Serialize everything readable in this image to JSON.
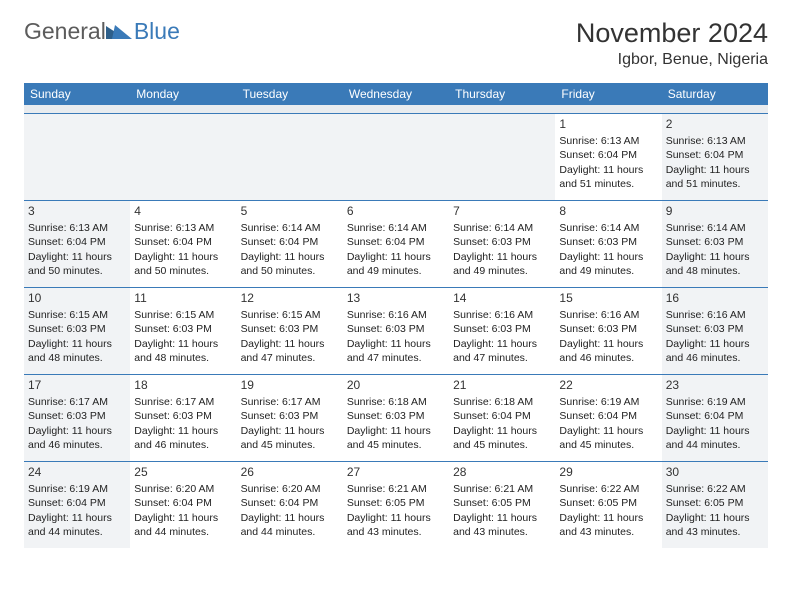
{
  "logo": {
    "general": "General",
    "blue": "Blue"
  },
  "title": "November 2024",
  "location": "Igbor, Benue, Nigeria",
  "colors": {
    "header_bg": "#3a7ab8",
    "shade_bg": "#f1f3f5",
    "rule": "#3a7ab8",
    "text": "#222222"
  },
  "day_headers": [
    "Sunday",
    "Monday",
    "Tuesday",
    "Wednesday",
    "Thursday",
    "Friday",
    "Saturday"
  ],
  "weeks": [
    [
      {
        "day": "",
        "sunrise": "",
        "sunset": "",
        "daylight1": "",
        "daylight2": "",
        "shade": true,
        "empty": true
      },
      {
        "day": "",
        "sunrise": "",
        "sunset": "",
        "daylight1": "",
        "daylight2": "",
        "shade": false,
        "empty": true
      },
      {
        "day": "",
        "sunrise": "",
        "sunset": "",
        "daylight1": "",
        "daylight2": "",
        "shade": false,
        "empty": true
      },
      {
        "day": "",
        "sunrise": "",
        "sunset": "",
        "daylight1": "",
        "daylight2": "",
        "shade": false,
        "empty": true
      },
      {
        "day": "",
        "sunrise": "",
        "sunset": "",
        "daylight1": "",
        "daylight2": "",
        "shade": false,
        "empty": true
      },
      {
        "day": "1",
        "sunrise": "Sunrise: 6:13 AM",
        "sunset": "Sunset: 6:04 PM",
        "daylight1": "Daylight: 11 hours",
        "daylight2": "and 51 minutes.",
        "shade": false,
        "empty": false
      },
      {
        "day": "2",
        "sunrise": "Sunrise: 6:13 AM",
        "sunset": "Sunset: 6:04 PM",
        "daylight1": "Daylight: 11 hours",
        "daylight2": "and 51 minutes.",
        "shade": true,
        "empty": false
      }
    ],
    [
      {
        "day": "3",
        "sunrise": "Sunrise: 6:13 AM",
        "sunset": "Sunset: 6:04 PM",
        "daylight1": "Daylight: 11 hours",
        "daylight2": "and 50 minutes.",
        "shade": true,
        "empty": false
      },
      {
        "day": "4",
        "sunrise": "Sunrise: 6:13 AM",
        "sunset": "Sunset: 6:04 PM",
        "daylight1": "Daylight: 11 hours",
        "daylight2": "and 50 minutes.",
        "shade": false,
        "empty": false
      },
      {
        "day": "5",
        "sunrise": "Sunrise: 6:14 AM",
        "sunset": "Sunset: 6:04 PM",
        "daylight1": "Daylight: 11 hours",
        "daylight2": "and 50 minutes.",
        "shade": false,
        "empty": false
      },
      {
        "day": "6",
        "sunrise": "Sunrise: 6:14 AM",
        "sunset": "Sunset: 6:04 PM",
        "daylight1": "Daylight: 11 hours",
        "daylight2": "and 49 minutes.",
        "shade": false,
        "empty": false
      },
      {
        "day": "7",
        "sunrise": "Sunrise: 6:14 AM",
        "sunset": "Sunset: 6:03 PM",
        "daylight1": "Daylight: 11 hours",
        "daylight2": "and 49 minutes.",
        "shade": false,
        "empty": false
      },
      {
        "day": "8",
        "sunrise": "Sunrise: 6:14 AM",
        "sunset": "Sunset: 6:03 PM",
        "daylight1": "Daylight: 11 hours",
        "daylight2": "and 49 minutes.",
        "shade": false,
        "empty": false
      },
      {
        "day": "9",
        "sunrise": "Sunrise: 6:14 AM",
        "sunset": "Sunset: 6:03 PM",
        "daylight1": "Daylight: 11 hours",
        "daylight2": "and 48 minutes.",
        "shade": true,
        "empty": false
      }
    ],
    [
      {
        "day": "10",
        "sunrise": "Sunrise: 6:15 AM",
        "sunset": "Sunset: 6:03 PM",
        "daylight1": "Daylight: 11 hours",
        "daylight2": "and 48 minutes.",
        "shade": true,
        "empty": false
      },
      {
        "day": "11",
        "sunrise": "Sunrise: 6:15 AM",
        "sunset": "Sunset: 6:03 PM",
        "daylight1": "Daylight: 11 hours",
        "daylight2": "and 48 minutes.",
        "shade": false,
        "empty": false
      },
      {
        "day": "12",
        "sunrise": "Sunrise: 6:15 AM",
        "sunset": "Sunset: 6:03 PM",
        "daylight1": "Daylight: 11 hours",
        "daylight2": "and 47 minutes.",
        "shade": false,
        "empty": false
      },
      {
        "day": "13",
        "sunrise": "Sunrise: 6:16 AM",
        "sunset": "Sunset: 6:03 PM",
        "daylight1": "Daylight: 11 hours",
        "daylight2": "and 47 minutes.",
        "shade": false,
        "empty": false
      },
      {
        "day": "14",
        "sunrise": "Sunrise: 6:16 AM",
        "sunset": "Sunset: 6:03 PM",
        "daylight1": "Daylight: 11 hours",
        "daylight2": "and 47 minutes.",
        "shade": false,
        "empty": false
      },
      {
        "day": "15",
        "sunrise": "Sunrise: 6:16 AM",
        "sunset": "Sunset: 6:03 PM",
        "daylight1": "Daylight: 11 hours",
        "daylight2": "and 46 minutes.",
        "shade": false,
        "empty": false
      },
      {
        "day": "16",
        "sunrise": "Sunrise: 6:16 AM",
        "sunset": "Sunset: 6:03 PM",
        "daylight1": "Daylight: 11 hours",
        "daylight2": "and 46 minutes.",
        "shade": true,
        "empty": false
      }
    ],
    [
      {
        "day": "17",
        "sunrise": "Sunrise: 6:17 AM",
        "sunset": "Sunset: 6:03 PM",
        "daylight1": "Daylight: 11 hours",
        "daylight2": "and 46 minutes.",
        "shade": true,
        "empty": false
      },
      {
        "day": "18",
        "sunrise": "Sunrise: 6:17 AM",
        "sunset": "Sunset: 6:03 PM",
        "daylight1": "Daylight: 11 hours",
        "daylight2": "and 46 minutes.",
        "shade": false,
        "empty": false
      },
      {
        "day": "19",
        "sunrise": "Sunrise: 6:17 AM",
        "sunset": "Sunset: 6:03 PM",
        "daylight1": "Daylight: 11 hours",
        "daylight2": "and 45 minutes.",
        "shade": false,
        "empty": false
      },
      {
        "day": "20",
        "sunrise": "Sunrise: 6:18 AM",
        "sunset": "Sunset: 6:03 PM",
        "daylight1": "Daylight: 11 hours",
        "daylight2": "and 45 minutes.",
        "shade": false,
        "empty": false
      },
      {
        "day": "21",
        "sunrise": "Sunrise: 6:18 AM",
        "sunset": "Sunset: 6:04 PM",
        "daylight1": "Daylight: 11 hours",
        "daylight2": "and 45 minutes.",
        "shade": false,
        "empty": false
      },
      {
        "day": "22",
        "sunrise": "Sunrise: 6:19 AM",
        "sunset": "Sunset: 6:04 PM",
        "daylight1": "Daylight: 11 hours",
        "daylight2": "and 45 minutes.",
        "shade": false,
        "empty": false
      },
      {
        "day": "23",
        "sunrise": "Sunrise: 6:19 AM",
        "sunset": "Sunset: 6:04 PM",
        "daylight1": "Daylight: 11 hours",
        "daylight2": "and 44 minutes.",
        "shade": true,
        "empty": false
      }
    ],
    [
      {
        "day": "24",
        "sunrise": "Sunrise: 6:19 AM",
        "sunset": "Sunset: 6:04 PM",
        "daylight1": "Daylight: 11 hours",
        "daylight2": "and 44 minutes.",
        "shade": true,
        "empty": false
      },
      {
        "day": "25",
        "sunrise": "Sunrise: 6:20 AM",
        "sunset": "Sunset: 6:04 PM",
        "daylight1": "Daylight: 11 hours",
        "daylight2": "and 44 minutes.",
        "shade": false,
        "empty": false
      },
      {
        "day": "26",
        "sunrise": "Sunrise: 6:20 AM",
        "sunset": "Sunset: 6:04 PM",
        "daylight1": "Daylight: 11 hours",
        "daylight2": "and 44 minutes.",
        "shade": false,
        "empty": false
      },
      {
        "day": "27",
        "sunrise": "Sunrise: 6:21 AM",
        "sunset": "Sunset: 6:05 PM",
        "daylight1": "Daylight: 11 hours",
        "daylight2": "and 43 minutes.",
        "shade": false,
        "empty": false
      },
      {
        "day": "28",
        "sunrise": "Sunrise: 6:21 AM",
        "sunset": "Sunset: 6:05 PM",
        "daylight1": "Daylight: 11 hours",
        "daylight2": "and 43 minutes.",
        "shade": false,
        "empty": false
      },
      {
        "day": "29",
        "sunrise": "Sunrise: 6:22 AM",
        "sunset": "Sunset: 6:05 PM",
        "daylight1": "Daylight: 11 hours",
        "daylight2": "and 43 minutes.",
        "shade": false,
        "empty": false
      },
      {
        "day": "30",
        "sunrise": "Sunrise: 6:22 AM",
        "sunset": "Sunset: 6:05 PM",
        "daylight1": "Daylight: 11 hours",
        "daylight2": "and 43 minutes.",
        "shade": true,
        "empty": false
      }
    ]
  ]
}
